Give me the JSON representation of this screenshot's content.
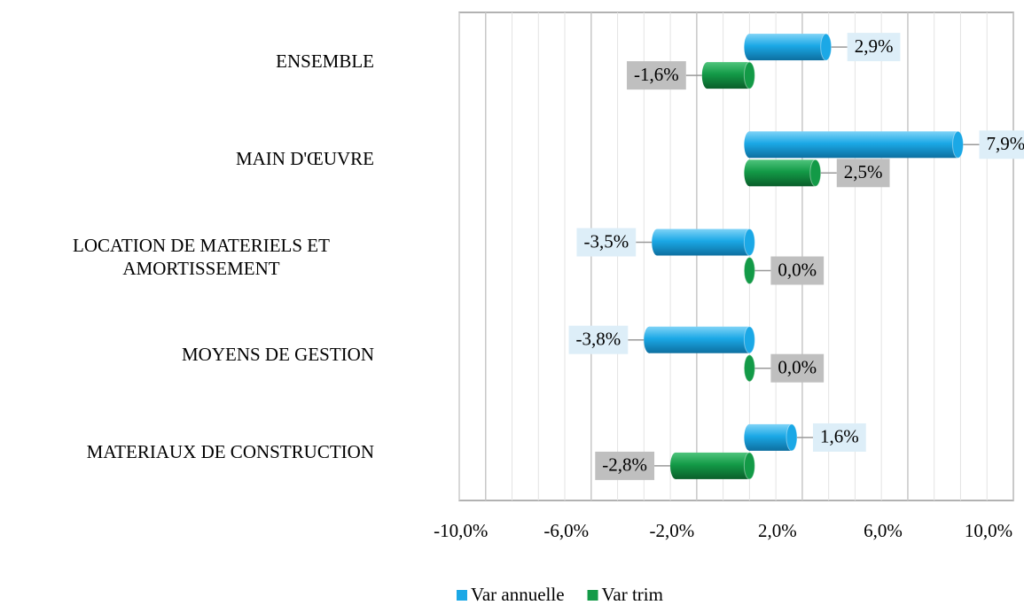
{
  "chart_data": {
    "type": "bar",
    "orientation": "horizontal",
    "categories": [
      "ENSEMBLE",
      "MAIN D'ŒUVRE",
      "LOCATION DE MATERIELS ET AMORTISSEMENT",
      "MOYENS DE GESTION",
      "MATERIAUX DE CONSTRUCTION"
    ],
    "series": [
      {
        "name": "Var annuelle",
        "color": "#1ba8e6",
        "values": [
          2.9,
          7.9,
          -3.5,
          -3.8,
          1.6
        ],
        "value_labels": [
          "2,9%",
          "7,9%",
          "-3,5%",
          "-3,8%",
          "1,6%"
        ]
      },
      {
        "name": "Var trim",
        "color": "#139a47",
        "values": [
          -1.6,
          2.5,
          0.0,
          0.0,
          -2.8
        ],
        "value_labels": [
          "-1,6%",
          "2,5%",
          "0,0%",
          "0,0%",
          "-2,8%"
        ]
      }
    ],
    "xlim": [
      -11,
      10
    ],
    "xticks": [
      {
        "value": -10,
        "label": "-10,0%"
      },
      {
        "value": -6,
        "label": "-6,0%"
      },
      {
        "value": -2,
        "label": "-2,0%"
      },
      {
        "value": 2,
        "label": "2,0%"
      },
      {
        "value": 6,
        "label": "6,0%"
      },
      {
        "value": 10,
        "label": "10,0%"
      }
    ],
    "grid": true,
    "legend": "bottom"
  }
}
